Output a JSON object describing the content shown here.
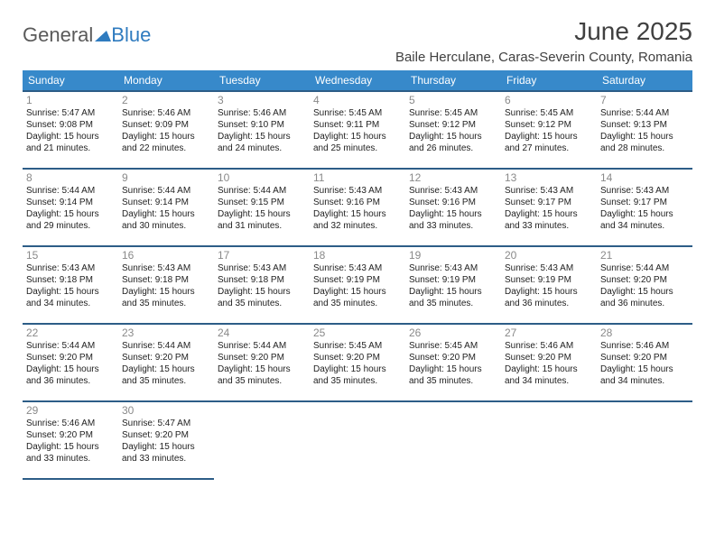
{
  "brand": {
    "part1": "General",
    "part2": "Blue"
  },
  "title": "June 2025",
  "location": "Baile Herculane, Caras-Severin County, Romania",
  "colors": {
    "header_bg": "#3789ca",
    "header_border": "#2d5d87",
    "logo_gray": "#5a5a5a",
    "logo_blue": "#2f7bbf",
    "text": "#404040"
  },
  "weekdays": [
    "Sunday",
    "Monday",
    "Tuesday",
    "Wednesday",
    "Thursday",
    "Friday",
    "Saturday"
  ],
  "labels": {
    "sunrise": "Sunrise:",
    "sunset": "Sunset:",
    "daylight": "Daylight:"
  },
  "days": [
    {
      "n": 1,
      "rise": "5:47 AM",
      "set": "9:08 PM",
      "dl": "15 hours and 21 minutes."
    },
    {
      "n": 2,
      "rise": "5:46 AM",
      "set": "9:09 PM",
      "dl": "15 hours and 22 minutes."
    },
    {
      "n": 3,
      "rise": "5:46 AM",
      "set": "9:10 PM",
      "dl": "15 hours and 24 minutes."
    },
    {
      "n": 4,
      "rise": "5:45 AM",
      "set": "9:11 PM",
      "dl": "15 hours and 25 minutes."
    },
    {
      "n": 5,
      "rise": "5:45 AM",
      "set": "9:12 PM",
      "dl": "15 hours and 26 minutes."
    },
    {
      "n": 6,
      "rise": "5:45 AM",
      "set": "9:12 PM",
      "dl": "15 hours and 27 minutes."
    },
    {
      "n": 7,
      "rise": "5:44 AM",
      "set": "9:13 PM",
      "dl": "15 hours and 28 minutes."
    },
    {
      "n": 8,
      "rise": "5:44 AM",
      "set": "9:14 PM",
      "dl": "15 hours and 29 minutes."
    },
    {
      "n": 9,
      "rise": "5:44 AM",
      "set": "9:14 PM",
      "dl": "15 hours and 30 minutes."
    },
    {
      "n": 10,
      "rise": "5:44 AM",
      "set": "9:15 PM",
      "dl": "15 hours and 31 minutes."
    },
    {
      "n": 11,
      "rise": "5:43 AM",
      "set": "9:16 PM",
      "dl": "15 hours and 32 minutes."
    },
    {
      "n": 12,
      "rise": "5:43 AM",
      "set": "9:16 PM",
      "dl": "15 hours and 33 minutes."
    },
    {
      "n": 13,
      "rise": "5:43 AM",
      "set": "9:17 PM",
      "dl": "15 hours and 33 minutes."
    },
    {
      "n": 14,
      "rise": "5:43 AM",
      "set": "9:17 PM",
      "dl": "15 hours and 34 minutes."
    },
    {
      "n": 15,
      "rise": "5:43 AM",
      "set": "9:18 PM",
      "dl": "15 hours and 34 minutes."
    },
    {
      "n": 16,
      "rise": "5:43 AM",
      "set": "9:18 PM",
      "dl": "15 hours and 35 minutes."
    },
    {
      "n": 17,
      "rise": "5:43 AM",
      "set": "9:18 PM",
      "dl": "15 hours and 35 minutes."
    },
    {
      "n": 18,
      "rise": "5:43 AM",
      "set": "9:19 PM",
      "dl": "15 hours and 35 minutes."
    },
    {
      "n": 19,
      "rise": "5:43 AM",
      "set": "9:19 PM",
      "dl": "15 hours and 35 minutes."
    },
    {
      "n": 20,
      "rise": "5:43 AM",
      "set": "9:19 PM",
      "dl": "15 hours and 36 minutes."
    },
    {
      "n": 21,
      "rise": "5:44 AM",
      "set": "9:20 PM",
      "dl": "15 hours and 36 minutes."
    },
    {
      "n": 22,
      "rise": "5:44 AM",
      "set": "9:20 PM",
      "dl": "15 hours and 36 minutes."
    },
    {
      "n": 23,
      "rise": "5:44 AM",
      "set": "9:20 PM",
      "dl": "15 hours and 35 minutes."
    },
    {
      "n": 24,
      "rise": "5:44 AM",
      "set": "9:20 PM",
      "dl": "15 hours and 35 minutes."
    },
    {
      "n": 25,
      "rise": "5:45 AM",
      "set": "9:20 PM",
      "dl": "15 hours and 35 minutes."
    },
    {
      "n": 26,
      "rise": "5:45 AM",
      "set": "9:20 PM",
      "dl": "15 hours and 35 minutes."
    },
    {
      "n": 27,
      "rise": "5:46 AM",
      "set": "9:20 PM",
      "dl": "15 hours and 34 minutes."
    },
    {
      "n": 28,
      "rise": "5:46 AM",
      "set": "9:20 PM",
      "dl": "15 hours and 34 minutes."
    },
    {
      "n": 29,
      "rise": "5:46 AM",
      "set": "9:20 PM",
      "dl": "15 hours and 33 minutes."
    },
    {
      "n": 30,
      "rise": "5:47 AM",
      "set": "9:20 PM",
      "dl": "15 hours and 33 minutes."
    }
  ],
  "grid": {
    "start_weekday": 0,
    "rows": 5,
    "cols": 7
  }
}
